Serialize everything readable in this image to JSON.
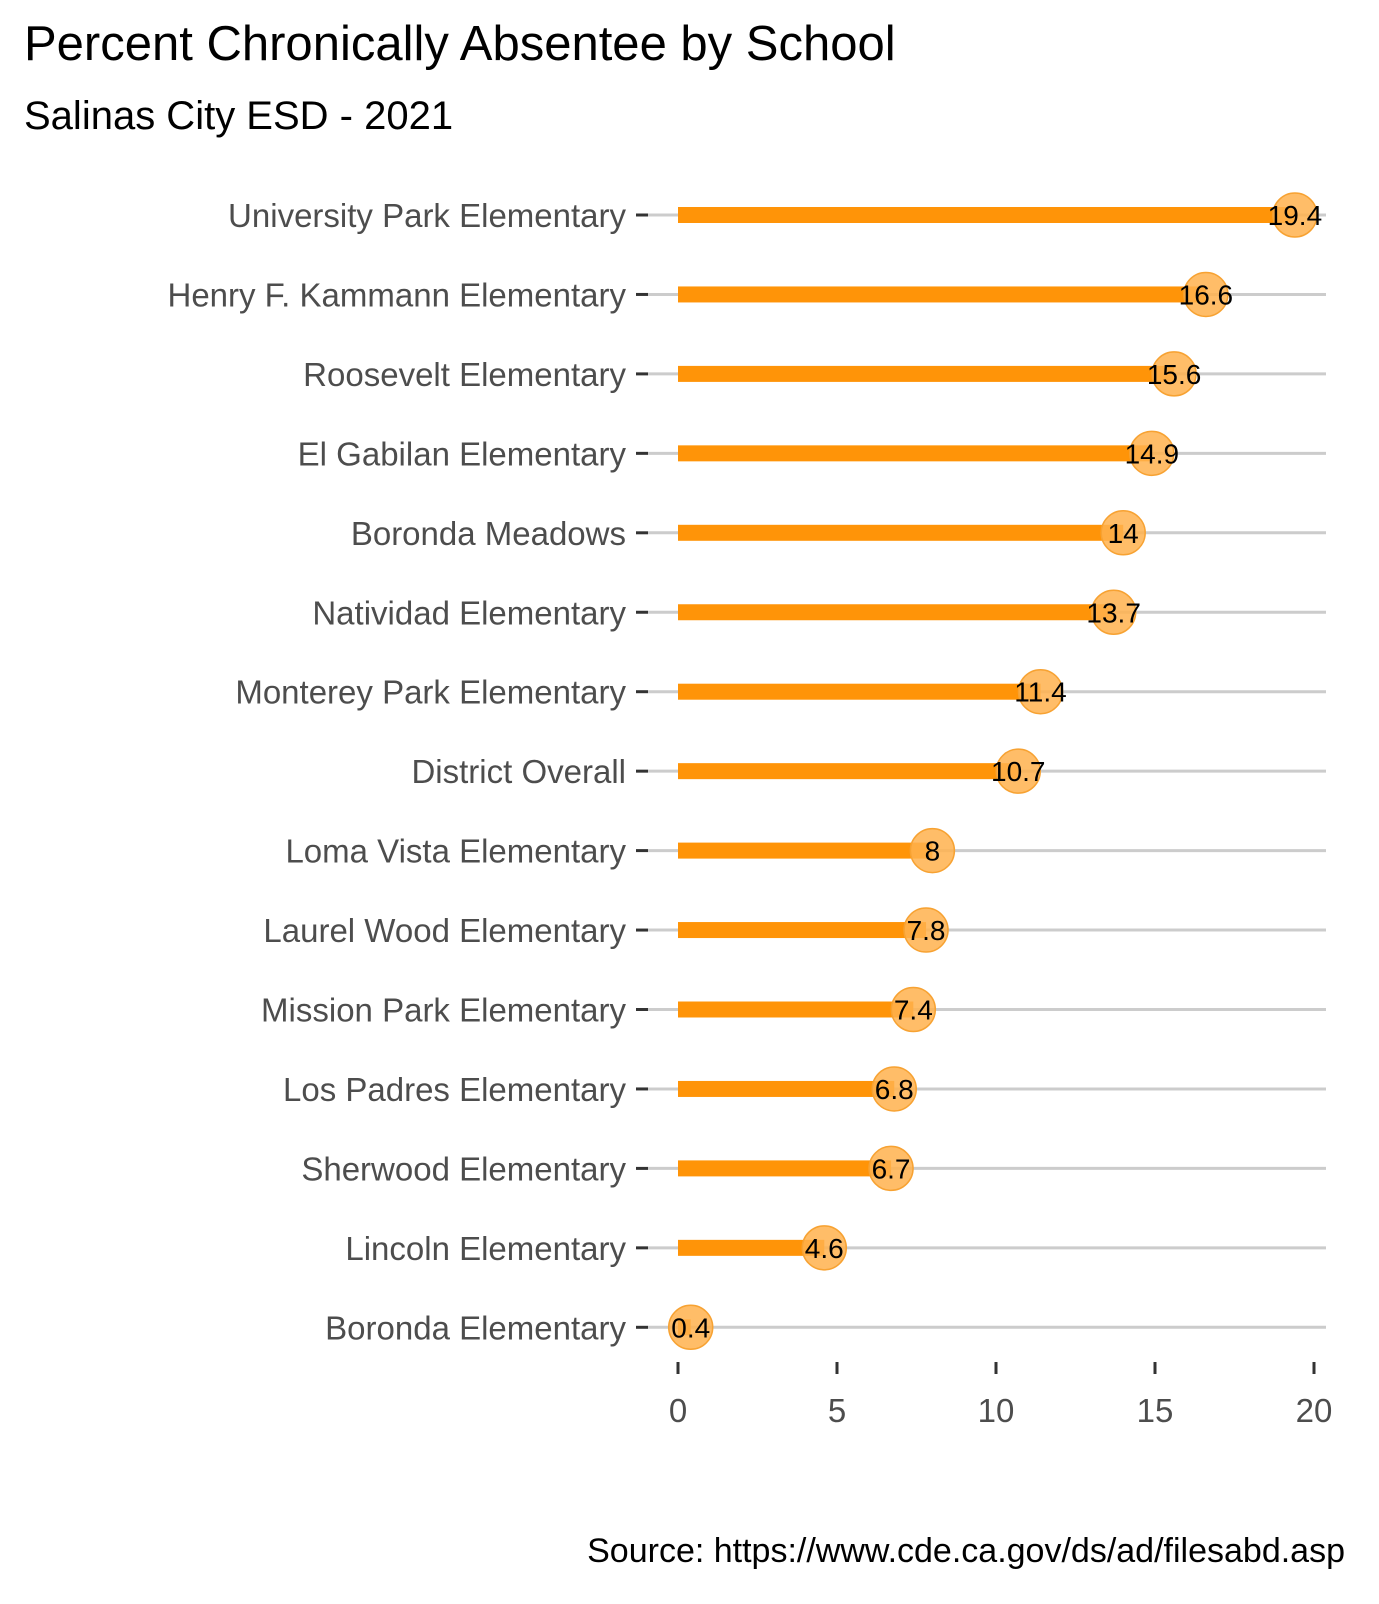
{
  "chart_data": {
    "type": "bar",
    "title": "Percent Chronically Absentee by School",
    "subtitle": "Salinas City ESD - 2021",
    "caption": "Source: https://www.cde.ca.gov/ds/ad/filesabd.asp",
    "xlabel": "",
    "ylabel": "",
    "orientation": "horizontal",
    "style": "lollipop",
    "categories": [
      "University Park Elementary",
      "Henry F. Kammann Elementary",
      "Roosevelt Elementary",
      "El Gabilan Elementary",
      "Boronda Meadows",
      "Natividad Elementary",
      "Monterey Park Elementary",
      "District Overall",
      "Loma Vista Elementary",
      "Laurel Wood Elementary",
      "Mission Park Elementary",
      "Los Padres Elementary",
      "Sherwood Elementary",
      "Lincoln Elementary",
      "Boronda Elementary"
    ],
    "values": [
      19.4,
      16.6,
      15.6,
      14.9,
      14,
      13.7,
      11.4,
      10.7,
      8,
      7.8,
      7.4,
      6.8,
      6.7,
      4.6,
      0.4
    ],
    "value_labels": [
      "19.4",
      "16.6",
      "15.6",
      "14.9",
      "14",
      "13.7",
      "11.4",
      "10.7",
      "8",
      "7.8",
      "7.4",
      "6.8",
      "6.7",
      "4.6",
      "0.4"
    ],
    "xlim": [
      0,
      20
    ],
    "xticks": [
      0,
      5,
      10,
      15,
      20
    ],
    "xtick_labels": [
      "0",
      "5",
      "10",
      "15",
      "20"
    ],
    "grid": "horizontal-major",
    "legend": "none",
    "colors": {
      "bar": "#ff9408",
      "point": "#ffb14e",
      "grid": "#cccccc",
      "axis_text": "#4d4d4d"
    }
  }
}
